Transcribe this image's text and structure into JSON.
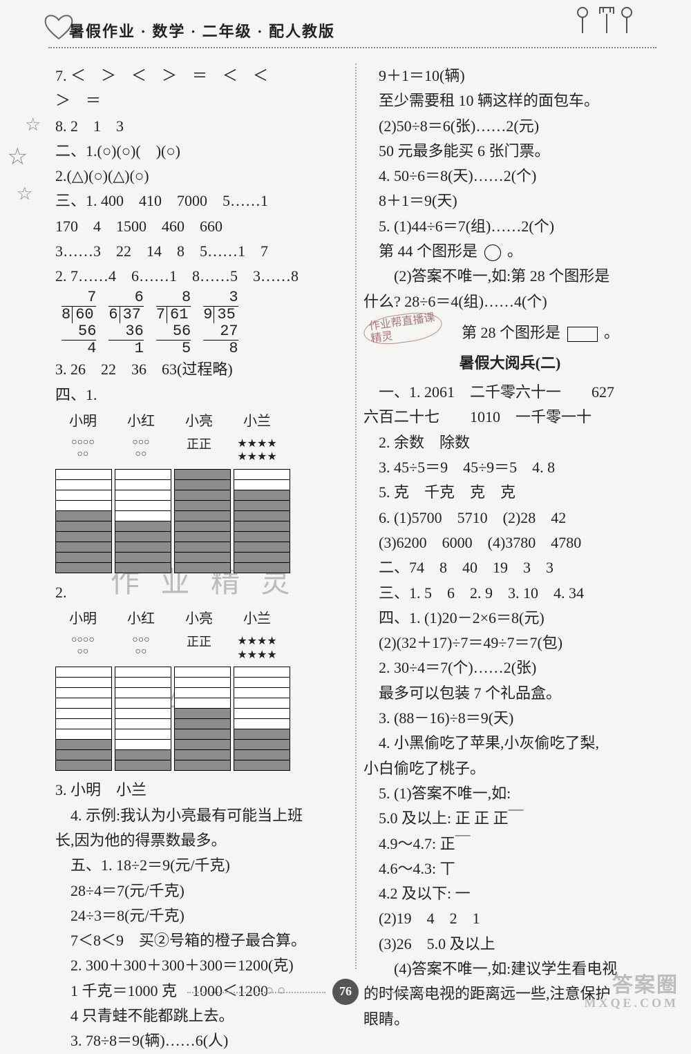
{
  "header": "暑假作业 · 数学 · 二年级 · 配人教版",
  "page_number": "76",
  "watermark": {
    "top": "答案圈",
    "bottom": "MXQE.COM"
  },
  "longdiv": [
    {
      "divisor": "8",
      "dividend": "60",
      "quot": "7",
      "sub": "56",
      "rem": "4"
    },
    {
      "divisor": "6",
      "dividend": "37",
      "quot": "6",
      "sub": "36",
      "rem": "1"
    },
    {
      "divisor": "7",
      "dividend": "61",
      "quot": "8",
      "sub": "56",
      "rem": "5"
    },
    {
      "divisor": "9",
      "dividend": "35",
      "quot": "3",
      "sub": "27",
      "rem": "8"
    }
  ],
  "chart": {
    "names": [
      "小明",
      "小红",
      "小亮",
      "小兰"
    ],
    "vote_render": [
      {
        "type": "circles",
        "rows": [
          "○○○○",
          "○○"
        ]
      },
      {
        "type": "circles",
        "rows": [
          "○○○",
          "○○"
        ]
      },
      {
        "type": "tally",
        "rows": [
          "正正"
        ]
      },
      {
        "type": "stars",
        "rows": [
          "★★★★",
          "★★★★"
        ]
      }
    ],
    "total_cells": 10,
    "chart1_filled": [
      6,
      5,
      10,
      8
    ],
    "chart2_filled": [
      3,
      2,
      6,
      4
    ],
    "colors": {
      "filled": "#8c8c8c",
      "empty": "#ffffff",
      "border": "#000000"
    }
  },
  "left": [
    "7. ＜　＞　＜　＞　＝　＜　＜",
    "＞　＝",
    "8. 2　1　3",
    "二、1.(○)(○)(　)(○)",
    "2.(△)(○)(△)(○)",
    "三、1. 400　410　7000　5……1",
    "170　4　1500　460　660",
    "3……3　22　14　8　5……1　7",
    "2. 7……4　6……1　8……5　3……8",
    "__LONGDIV__",
    "3. 26　22　36　63(过程略)",
    "四、1.",
    "__CHART1__",
    "2.",
    "__CHART2__",
    "3. 小明　小兰",
    "　4. 示例:我认为小亮最有可能当上班",
    "长,因为他的得票数最多。",
    "　五、1. 18÷2＝9(元/千克)",
    "　28÷4＝7(元/千克)",
    "　24÷3＝8(元/千克)",
    "　7＜8＜9　买②号箱的橙子最合算。",
    "　2. 300＋300＋300＋300＝1200(克)",
    "　1 千克＝1000 克　1000＜1200",
    "　4 只青蛙不能都跳上去。",
    "　3. 78÷8＝9(辆)……6(人)"
  ],
  "right": [
    "　9＋1＝10(辆)",
    "　至少需要租 10 辆这样的面包车。",
    "　(2)50÷8＝6(张)……2(元)",
    "　50 元最多能买 6 张门票。",
    "　4. 50÷6＝8(天)……2(个)",
    "　8＋1＝9(天)",
    "　5. (1)44÷6＝7(组)……2(个)",
    "　第 44 个图形是 __CIRC__ 。",
    "　　(2)答案不唯一,如:第 28 个图形是",
    "什么? 28÷6＝4(组)……4(个)",
    "__STAMP_LINE__",
    "__SECTION_TITLE__",
    "　一、1. 2061　二千零六十一　　627",
    "六百二十七　　1010　一千零一十",
    "　2. 余数　除数",
    "　3. 45÷5＝9　45÷9＝5　4. 8",
    "　5. 克　千克　克　克",
    "　6. (1)5700　5710　(2)28　42",
    "　(3)6200　6000　(4)3780　4780",
    "　二、74　8　40　19　3　3",
    "　三、1. 5　6　2. 9　3. 10　4. 34",
    "　四、1. (1)20－2×6＝8(元)",
    "　(2)(32＋17)÷7＝49÷7＝7(包)",
    "　2. 30÷4＝7(个)……2(张)",
    "　最多可以包装 7 个礼品盒。",
    "　3. (88－16)÷8＝9(天)",
    "　4. 小黑偷吃了苹果,小灰偷吃了梨,",
    "小白偷吃了桃子。",
    "　5. (1)答案不唯一,如:",
    "　5.0 及以上: 正 正 正￣",
    "　4.9～4.7: 正￣",
    "　4.6～4.3: 丅",
    "　4.2 及以下: 一",
    "　(2)19　4　2　1",
    "　(3)26　5.0 及以上",
    "　　(4)答案不唯一,如:建议学生看电视",
    "的时候离电视的距离远一些,注意保护",
    "眼睛。"
  ],
  "section_title": "暑假大阅兵(二)",
  "stamp_text": "作业帮直播课\\n精灵",
  "stamp_line_text": "　第 28 个图形是 __BOX__ 。"
}
